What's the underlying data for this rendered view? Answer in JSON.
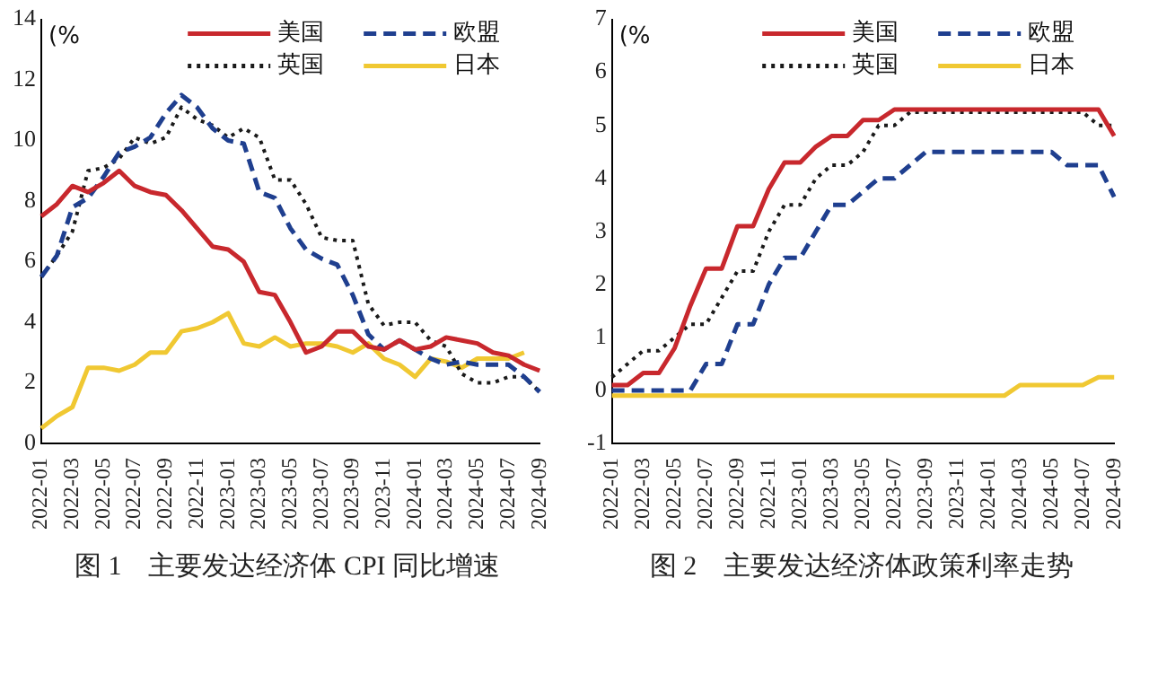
{
  "chart_data": [
    {
      "type": "line",
      "title": "图 1　主要发达经济体 CPI 同比增速",
      "ylabel": "(%",
      "legend": "top right",
      "grid": false,
      "marker": "none",
      "categories": [
        "2022-01",
        null,
        "2022-03",
        null,
        "2022-05",
        null,
        "2022-07",
        null,
        "2022-09",
        null,
        "2022-11",
        null,
        "2023-01",
        null,
        "2023-03",
        null,
        "2023-05",
        null,
        "2023-07",
        null,
        "2023-09",
        null,
        "2023-11",
        null,
        "2024-01",
        null,
        "2024-03",
        null,
        "2024-05",
        null,
        "2024-07",
        null,
        "2024-09"
      ],
      "ylim": [
        0,
        14
      ],
      "yticks": [
        0,
        2,
        4,
        6,
        8,
        10,
        12,
        14
      ],
      "series": [
        {
          "name": "美国",
          "color": "#c8282d",
          "line_style": "solid",
          "values": [
            7.5,
            7.9,
            8.5,
            8.3,
            8.6,
            9.0,
            8.5,
            8.3,
            8.2,
            7.7,
            7.1,
            6.5,
            6.4,
            6.0,
            5.0,
            4.9,
            4.0,
            3.0,
            3.2,
            3.7,
            3.7,
            3.2,
            3.1,
            3.4,
            3.1,
            3.2,
            3.5,
            3.4,
            3.3,
            3.0,
            2.9,
            2.6,
            2.4
          ]
        },
        {
          "name": "欧盟",
          "color": "#1f3f8f",
          "line_style": "dashed",
          "values": [
            5.5,
            6.2,
            7.8,
            8.1,
            8.8,
            9.6,
            9.8,
            10.1,
            10.9,
            11.5,
            11.1,
            10.4,
            10.0,
            9.9,
            8.3,
            8.1,
            7.1,
            6.4,
            6.1,
            5.9,
            4.9,
            3.6,
            3.1,
            3.4,
            3.1,
            2.8,
            2.6,
            2.7,
            2.6,
            2.6,
            2.6,
            2.2,
            1.7
          ]
        },
        {
          "name": "英国",
          "color": "#1a1a1a",
          "line_style": "dotted",
          "values": [
            5.5,
            6.2,
            7.0,
            9.0,
            9.1,
            9.4,
            10.1,
            9.9,
            10.1,
            11.1,
            10.7,
            10.5,
            10.1,
            10.4,
            10.1,
            8.7,
            8.7,
            7.9,
            6.8,
            6.7,
            6.7,
            4.6,
            3.9,
            4.0,
            4.0,
            3.4,
            3.2,
            2.3,
            2.0,
            2.0,
            2.2,
            2.2,
            1.7
          ]
        },
        {
          "name": "日本",
          "color": "#f0c832",
          "line_style": "solid",
          "values": [
            0.5,
            0.9,
            1.2,
            2.5,
            2.5,
            2.4,
            2.6,
            3.0,
            3.0,
            3.7,
            3.8,
            4.0,
            4.3,
            3.3,
            3.2,
            3.5,
            3.2,
            3.3,
            3.3,
            3.2,
            3.0,
            3.3,
            2.8,
            2.6,
            2.2,
            2.8,
            2.7,
            2.5,
            2.8,
            2.8,
            2.8,
            3.0,
            null
          ]
        }
      ]
    },
    {
      "type": "line",
      "title": "图 2　主要发达经济体政策利率走势",
      "ylabel": "(%",
      "legend": "top right",
      "grid": false,
      "marker": "none",
      "categories": [
        "2022-01",
        null,
        "2022-03",
        null,
        "2022-05",
        null,
        "2022-07",
        null,
        "2022-09",
        null,
        "2022-11",
        null,
        "2023-01",
        null,
        "2023-03",
        null,
        "2023-05",
        null,
        "2023-07",
        null,
        "2023-09",
        null,
        "2023-11",
        null,
        "2024-01",
        null,
        "2024-03",
        null,
        "2024-05",
        null,
        "2024-07",
        null,
        "2024-09"
      ],
      "ylim": [
        -1,
        7
      ],
      "yticks": [
        -1,
        0,
        1,
        2,
        3,
        4,
        5,
        6,
        7
      ],
      "series": [
        {
          "name": "美国",
          "color": "#c8282d",
          "line_style": "solid",
          "values": [
            0.1,
            0.1,
            0.33,
            0.33,
            0.8,
            1.6,
            2.3,
            2.3,
            3.1,
            3.1,
            3.8,
            4.3,
            4.3,
            4.6,
            4.8,
            4.8,
            5.1,
            5.1,
            5.3,
            5.3,
            5.3,
            5.3,
            5.3,
            5.3,
            5.3,
            5.3,
            5.3,
            5.3,
            5.3,
            5.3,
            5.3,
            5.3,
            4.8
          ]
        },
        {
          "name": "欧盟",
          "color": "#1f3f8f",
          "line_style": "dashed",
          "values": [
            0,
            0,
            0,
            0,
            0,
            0,
            0.5,
            0.5,
            1.25,
            1.25,
            2.0,
            2.5,
            2.5,
            3.0,
            3.5,
            3.5,
            3.75,
            4.0,
            4.0,
            4.25,
            4.5,
            4.5,
            4.5,
            4.5,
            4.5,
            4.5,
            4.5,
            4.5,
            4.5,
            4.25,
            4.25,
            4.25,
            3.65
          ]
        },
        {
          "name": "英国",
          "color": "#1a1a1a",
          "line_style": "dotted",
          "values": [
            0.25,
            0.5,
            0.75,
            0.75,
            1.0,
            1.25,
            1.25,
            1.75,
            2.25,
            2.25,
            3.0,
            3.5,
            3.5,
            4.0,
            4.25,
            4.25,
            4.5,
            5.0,
            5.0,
            5.25,
            5.25,
            5.25,
            5.25,
            5.25,
            5.25,
            5.25,
            5.25,
            5.25,
            5.25,
            5.25,
            5.25,
            5.0,
            5.0
          ]
        },
        {
          "name": "日本",
          "color": "#f0c832",
          "line_style": "solid",
          "values": [
            -0.1,
            -0.1,
            -0.1,
            -0.1,
            -0.1,
            -0.1,
            -0.1,
            -0.1,
            -0.1,
            -0.1,
            -0.1,
            -0.1,
            -0.1,
            -0.1,
            -0.1,
            -0.1,
            -0.1,
            -0.1,
            -0.1,
            -0.1,
            -0.1,
            -0.1,
            -0.1,
            -0.1,
            -0.1,
            -0.1,
            0.1,
            0.1,
            0.1,
            0.1,
            0.1,
            0.25,
            0.25
          ]
        }
      ]
    }
  ]
}
